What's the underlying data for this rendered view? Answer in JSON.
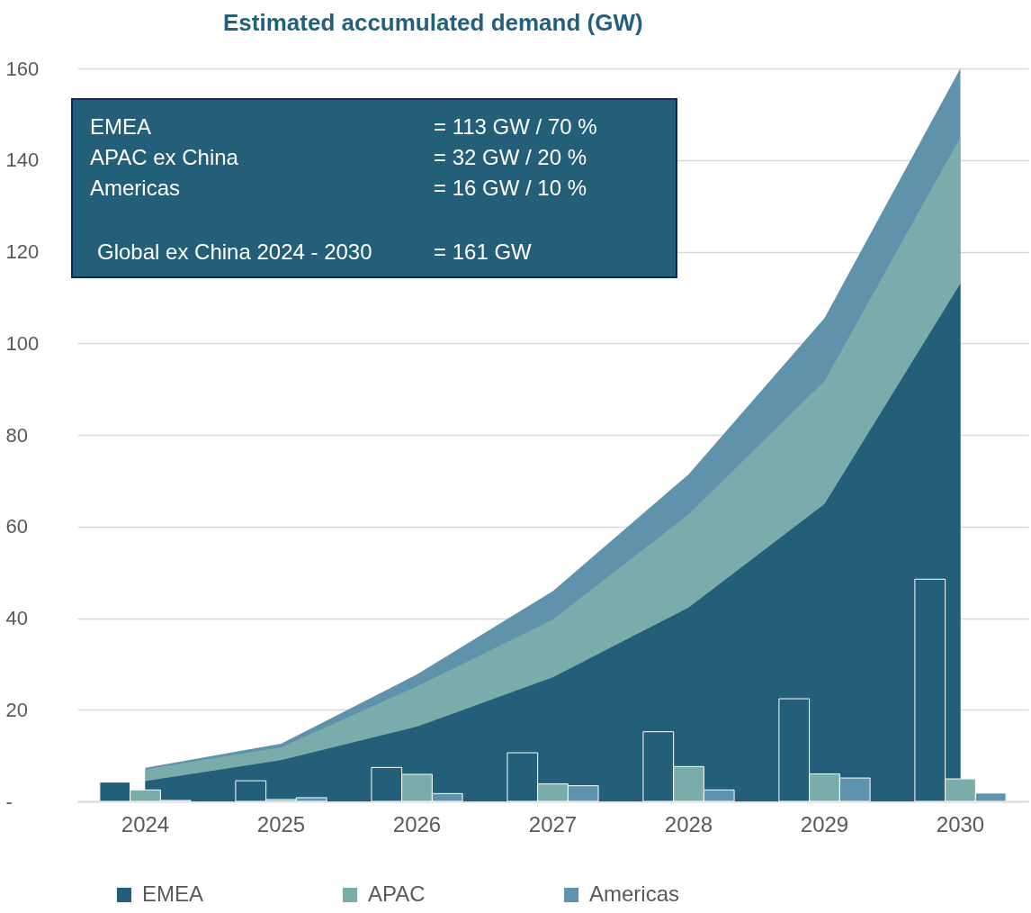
{
  "chart_data": {
    "type": "bar",
    "title": "Estimated accumulated demand (GW)",
    "categories": [
      "2024",
      "2025",
      "2026",
      "2027",
      "2028",
      "2029",
      "2030"
    ],
    "series": [
      {
        "type": "area",
        "color": "#5f92ab",
        "values": [
          7.3,
          12.6,
          27.7,
          45.9,
          71.4,
          105.5,
          160
        ]
      },
      {
        "type": "area",
        "color": "#7aacab",
        "values": [
          7.0,
          11.8,
          25.1,
          39.7,
          62.7,
          91.8,
          145
        ]
      },
      {
        "type": "area",
        "color": "#235f78",
        "values": [
          4.4,
          9.0,
          16.3,
          27.1,
          42.3,
          64.9,
          113
        ]
      },
      {
        "name": "EMEA",
        "color": "#235f78",
        "values": [
          4.2,
          4.5,
          7.4,
          10.6,
          15.2,
          22.4,
          48.5
        ]
      },
      {
        "name": "APAC",
        "color": "#7aacab",
        "values": [
          2.5,
          0.4,
          5.9,
          3.8,
          7.6,
          6.0,
          4.9
        ]
      },
      {
        "name": "Americas",
        "color": "#5f92ab",
        "values": [
          0.2,
          0.8,
          1.7,
          3.4,
          2.5,
          5.1,
          1.8
        ]
      }
    ],
    "ylim": [
      0,
      160
    ],
    "yticks": [
      {
        "value": 0,
        "label": "-"
      },
      20,
      40,
      60,
      80,
      100,
      120,
      140,
      160
    ],
    "grid": "y",
    "legend": "bottom",
    "annotations": [
      "EMEA = 113 GW / 70 %",
      "APAC ex China = 32 GW / 20 %",
      "Americas = 16 GW / 10 %",
      "Global ex China 2024 - 2030 = 161 GW"
    ]
  }
}
